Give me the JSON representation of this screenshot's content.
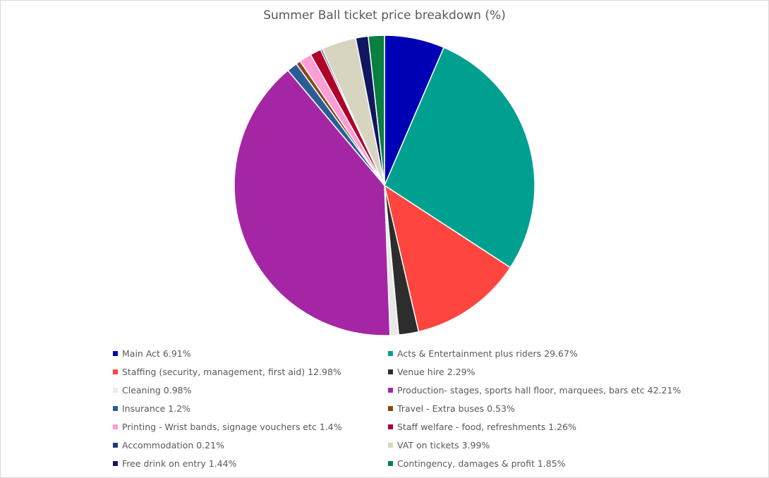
{
  "chart_data": {
    "type": "pie",
    "title": "Summer Ball ticket price breakdown (%)",
    "legend_position": "bottom",
    "slices": [
      {
        "label": "Main Act 6.91%",
        "value": 6.91,
        "color": "#0000b4"
      },
      {
        "label": "Acts & Entertainment plus riders 29.67%",
        "value": 29.67,
        "color": "#00a091"
      },
      {
        "label": "Staffing (security, management, first aid) 12.98%",
        "value": 12.98,
        "color": "#ff4540"
      },
      {
        "label": "Venue hire 2.29%",
        "value": 2.29,
        "color": "#2d2d2d"
      },
      {
        "label": "Cleaning 0.98%",
        "value": 0.98,
        "color": "#e8e8e8"
      },
      {
        "label": "Production- stages, sports hall floor, marquees, bars etc  42.21%",
        "value": 42.21,
        "color": "#a526a5"
      },
      {
        "label": "Insurance 1.2%",
        "value": 1.2,
        "color": "#2a5d96"
      },
      {
        "label": "Travel - Extra buses 0.53%",
        "value": 0.53,
        "color": "#8b4513"
      },
      {
        "label": "Printing - Wrist bands, signage vouchers etc 1.4%",
        "value": 1.4,
        "color": "#ff9dd4"
      },
      {
        "label": "Staff welfare - food, refreshments 1.26%",
        "value": 1.26,
        "color": "#b0002a"
      },
      {
        "label": "Accommodation 0.21%",
        "value": 0.21,
        "color": "#1a3d7a"
      },
      {
        "label": "VAT on tickets 3.99%",
        "value": 3.99,
        "color": "#d7d5bf"
      },
      {
        "label": "Free drink on entry 1.44%",
        "value": 1.44,
        "color": "#101660"
      },
      {
        "label": "Contingency, damages & profit 1.85%",
        "value": 1.85,
        "color": "#0a8040"
      }
    ]
  }
}
